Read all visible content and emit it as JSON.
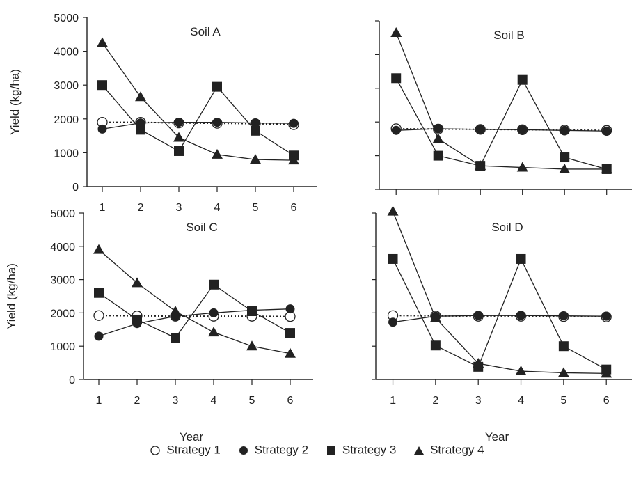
{
  "chart_data": [
    {
      "type": "line",
      "title": "Soil A",
      "ylabel": "Yield (kg/ha)",
      "xlabel": "",
      "x": [
        1,
        2,
        3,
        4,
        5,
        6
      ],
      "xticks": [
        "1",
        "2",
        "3",
        "4",
        "5",
        "6"
      ],
      "yticks": [
        "0",
        "1000",
        "2000",
        "3000",
        "4000",
        "5000"
      ],
      "xlim": [
        0.6,
        6.6
      ],
      "ylim": [
        0,
        5000
      ],
      "series": [
        {
          "name": "Strategy 1",
          "values": [
            1900,
            1900,
            1880,
            1870,
            1860,
            1830
          ]
        },
        {
          "name": "Strategy 2",
          "values": [
            1700,
            1880,
            1900,
            1900,
            1880,
            1870
          ]
        },
        {
          "name": "Strategy 3",
          "values": [
            3000,
            1680,
            1050,
            2950,
            1650,
            920
          ]
        },
        {
          "name": "Strategy 4",
          "values": [
            4250,
            2650,
            1450,
            950,
            800,
            780
          ]
        }
      ]
    },
    {
      "type": "line",
      "title": "Soil B",
      "ylabel": "",
      "xlabel": "",
      "x": [
        1,
        2,
        3,
        4,
        5,
        6
      ],
      "xticks": [
        "",
        "",
        "",
        "",
        "",
        ""
      ],
      "yticks": [
        "",
        "",
        "",
        "",
        "",
        ""
      ],
      "xlim": [
        0.6,
        6.6
      ],
      "ylim": [
        0,
        5000
      ],
      "series": [
        {
          "name": "Strategy 1",
          "values": [
            1800,
            1790,
            1780,
            1770,
            1760,
            1750
          ]
        },
        {
          "name": "Strategy 2",
          "values": [
            1750,
            1800,
            1780,
            1770,
            1750,
            1730
          ]
        },
        {
          "name": "Strategy 3",
          "values": [
            3300,
            1000,
            700,
            3250,
            950,
            600
          ]
        },
        {
          "name": "Strategy 4",
          "values": [
            4650,
            1500,
            700,
            650,
            600,
            600
          ]
        }
      ]
    },
    {
      "type": "line",
      "title": "Soil C",
      "ylabel": "Yield (kg/ha)",
      "xlabel": "Year",
      "x": [
        1,
        2,
        3,
        4,
        5,
        6
      ],
      "xticks": [
        "1",
        "2",
        "3",
        "4",
        "5",
        "6"
      ],
      "yticks": [
        "0",
        "1000",
        "2000",
        "3000",
        "4000",
        "5000"
      ],
      "xlim": [
        0.6,
        6.6
      ],
      "ylim": [
        0,
        5000
      ],
      "series": [
        {
          "name": "Strategy 1",
          "values": [
            1920,
            1910,
            1900,
            1900,
            1900,
            1890
          ]
        },
        {
          "name": "Strategy 2",
          "values": [
            1300,
            1680,
            1900,
            2000,
            2080,
            2120
          ]
        },
        {
          "name": "Strategy 3",
          "values": [
            2600,
            1800,
            1250,
            2850,
            2050,
            1400
          ]
        },
        {
          "name": "Strategy 4",
          "values": [
            3900,
            2900,
            2050,
            1420,
            1000,
            780
          ]
        }
      ]
    },
    {
      "type": "line",
      "title": "Soil D",
      "ylabel": "",
      "xlabel": "Year",
      "x": [
        1,
        2,
        3,
        4,
        5,
        6
      ],
      "xticks": [
        "1",
        "2",
        "3",
        "4",
        "5",
        "6"
      ],
      "yticks": [
        "",
        "",
        "",
        "",
        "",
        ""
      ],
      "xlim": [
        0.6,
        6.6
      ],
      "ylim": [
        0,
        5000
      ],
      "series": [
        {
          "name": "Strategy 1",
          "values": [
            1920,
            1910,
            1900,
            1900,
            1890,
            1880
          ]
        },
        {
          "name": "Strategy 2",
          "values": [
            1720,
            1900,
            1920,
            1920,
            1910,
            1900
          ]
        },
        {
          "name": "Strategy 3",
          "values": [
            3620,
            1020,
            380,
            3620,
            1000,
            300
          ]
        },
        {
          "name": "Strategy 4",
          "values": [
            5050,
            1850,
            480,
            250,
            200,
            180
          ]
        }
      ]
    }
  ],
  "legend": {
    "items": [
      {
        "label": "Strategy 1",
        "marker": "open-circle"
      },
      {
        "label": "Strategy 2",
        "marker": "filled-circle"
      },
      {
        "label": "Strategy 3",
        "marker": "filled-square"
      },
      {
        "label": "Strategy 4",
        "marker": "filled-triangle"
      }
    ]
  },
  "colors": {
    "ink": "#222222",
    "open_fill": "#ffffff"
  }
}
